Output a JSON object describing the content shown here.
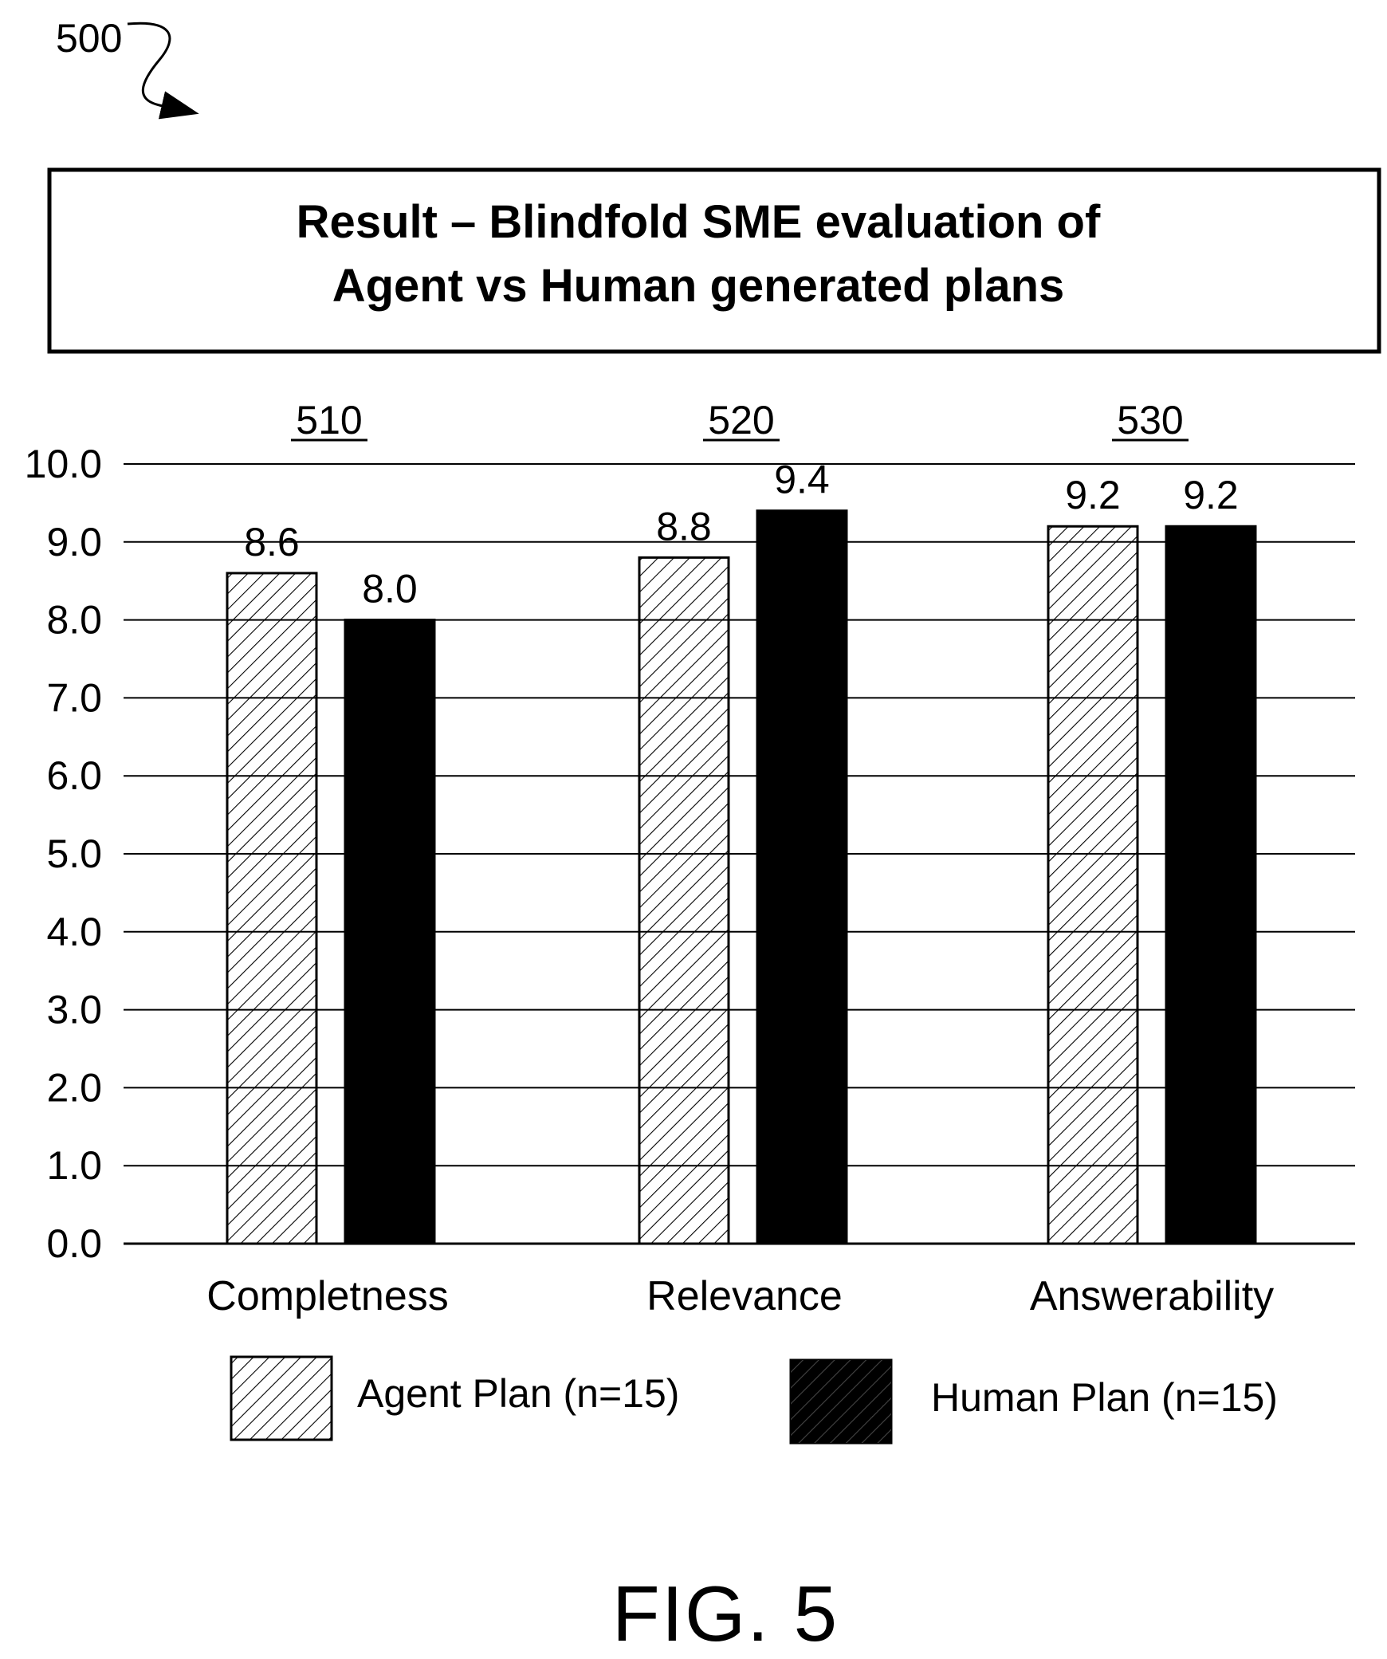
{
  "figure": {
    "reference_numeral": "500",
    "caption": "FIG. 5"
  },
  "chart_data": {
    "type": "bar",
    "title": "Result – Blindfold SME evaluation of\nAgent vs Human generated plans",
    "title_lines": [
      "Result – Blindfold SME evaluation of",
      "Agent vs Human generated plans"
    ],
    "categories": [
      "Completness",
      "Relevance",
      "Answerability"
    ],
    "category_refs": [
      "510",
      "520",
      "530"
    ],
    "series": [
      {
        "name": "Agent Plan (n=15)",
        "values": [
          8.6,
          8.8,
          9.2
        ],
        "value_labels": [
          "8.6",
          "8.8",
          "9.2"
        ],
        "fill": "hatched",
        "color": "#000000"
      },
      {
        "name": "Human Plan (n=15)",
        "values": [
          8.0,
          9.4,
          9.2
        ],
        "value_labels": [
          "8.0",
          "9.4",
          "9.2"
        ],
        "fill": "solid",
        "color": "#000000"
      }
    ],
    "ylim": [
      0,
      10
    ],
    "yticks": [
      "0.0",
      "1.0",
      "2.0",
      "3.0",
      "4.0",
      "5.0",
      "6.0",
      "7.0",
      "8.0",
      "9.0",
      "10.0"
    ],
    "xlabel": "",
    "ylabel": "",
    "grid": true,
    "legend_position": "bottom"
  }
}
